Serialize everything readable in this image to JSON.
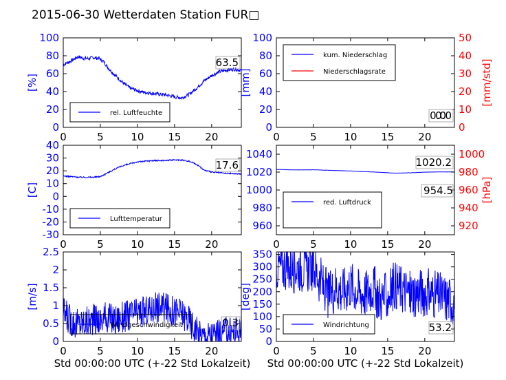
{
  "figure_title": "2015-06-30 Wetterdaten Station FUR□",
  "colors": {
    "axis": "#000000",
    "series_blue": "#0000ff",
    "series_red": "#ff0000",
    "ylabel_blue": "#0000ff",
    "ylabel_red": "#ff0000"
  },
  "chart_data": [
    {
      "id": "humidity",
      "type": "line",
      "title": "",
      "xlabel": "",
      "ylabel": "[%]",
      "xlim": [
        0,
        24
      ],
      "ylim": [
        0,
        100
      ],
      "xticks": [
        0,
        5,
        10,
        15,
        20
      ],
      "yticks": [
        0,
        20,
        40,
        60,
        80,
        100
      ],
      "legend_position": "lower-left",
      "value_label": "63.5",
      "series": [
        {
          "name": "rel. Luftfeuchte",
          "color": "#0000ff",
          "noise": 2,
          "x": [
            0,
            1,
            2,
            2.8,
            3.5,
            4,
            4.8,
            5.5,
            6,
            7,
            8,
            9,
            10,
            11,
            12,
            13,
            14,
            15,
            16,
            17,
            18,
            19,
            20,
            21,
            22,
            23,
            24
          ],
          "y": [
            70,
            74,
            79,
            77,
            77,
            78,
            77,
            73,
            67,
            58,
            50,
            44,
            41,
            39,
            38,
            37,
            36,
            34,
            33,
            37,
            44,
            52,
            58,
            62,
            64,
            65,
            64
          ]
        }
      ]
    },
    {
      "id": "precipitation",
      "type": "line",
      "title": "",
      "xlabel": "",
      "ylabel": "[mm]",
      "ylabel_right": "[mm/std]",
      "xlim": [
        0,
        24
      ],
      "ylim": [
        0,
        100
      ],
      "ylim_right": [
        0,
        50
      ],
      "xticks": [
        0,
        5,
        10,
        15,
        20
      ],
      "yticks": [
        0,
        20,
        40,
        60,
        80,
        100
      ],
      "yticks_right": [
        0,
        10,
        20,
        30,
        40,
        50
      ],
      "legend_position": "upper-left",
      "value_label": "0.0",
      "value_label_2": "0.0",
      "series": [
        {
          "name": "kum. Niederschlag",
          "color": "#0000ff",
          "axis": "left",
          "noise": 0,
          "x": [
            0,
            24
          ],
          "y": [
            0,
            0
          ]
        },
        {
          "name": "Niederschlagsrate",
          "color": "#ff0000",
          "axis": "right",
          "noise": 0,
          "x": [
            0,
            24
          ],
          "y": [
            0,
            0
          ]
        }
      ]
    },
    {
      "id": "temperature",
      "type": "line",
      "title": "",
      "xlabel": "",
      "ylabel": "[C]",
      "xlim": [
        0,
        24
      ],
      "ylim": [
        -30,
        40
      ],
      "xticks": [
        0,
        5,
        10,
        15,
        20
      ],
      "yticks": [
        -30,
        -20,
        -10,
        0,
        10,
        20,
        30,
        40
      ],
      "legend_position": "lower-left",
      "value_label": "17.6",
      "series": [
        {
          "name": "Lufttemperatur",
          "color": "#0000ff",
          "noise": 0.5,
          "x": [
            0,
            1,
            2,
            3,
            4,
            5,
            6,
            7,
            8,
            9,
            10,
            11,
            12,
            13,
            14,
            15,
            16,
            17,
            18,
            19,
            20,
            21,
            22,
            23,
            24
          ],
          "y": [
            16,
            15.5,
            15,
            15,
            15,
            15.5,
            18.5,
            21.5,
            24,
            25.5,
            27,
            27.5,
            28,
            28,
            28.2,
            28.5,
            28.5,
            27.5,
            25,
            20.5,
            19,
            18.5,
            18,
            17.8,
            17.6
          ]
        }
      ]
    },
    {
      "id": "pressure",
      "type": "line",
      "title": "",
      "xlabel": "",
      "ylabel": "",
      "ylabel_right": "[hPa]",
      "xlim": [
        0,
        24
      ],
      "ylim": [
        950,
        1050
      ],
      "ylim_right": [
        910,
        1010
      ],
      "xticks": [
        0,
        5,
        10,
        15,
        20
      ],
      "yticks": [
        960,
        980,
        1000,
        1020,
        1040
      ],
      "yticks_right": [
        920,
        940,
        960,
        980,
        1000
      ],
      "legend_position": "lower-left",
      "value_label": "1020.2",
      "value_label_2": "954.5",
      "series": [
        {
          "name": "red. Luftdruck",
          "color": "#0000ff",
          "axis": "left",
          "noise": 0.15,
          "x": [
            0,
            2,
            4,
            5,
            6,
            8,
            10,
            12,
            14,
            16,
            18,
            20,
            22,
            24
          ],
          "y": [
            1023,
            1022.5,
            1022.5,
            1022.6,
            1022.3,
            1021.8,
            1021.2,
            1020.5,
            1019.8,
            1018.8,
            1019.2,
            1020,
            1020.2,
            1020.2
          ]
        }
      ]
    },
    {
      "id": "windspeed",
      "type": "line",
      "title": "",
      "xlabel": "Std 00:00:00 UTC (+-22 Std Lokalzeit)",
      "ylabel": "[m/s]",
      "xlim": [
        0,
        24
      ],
      "ylim": [
        0,
        2.5
      ],
      "xticks": [
        0,
        5,
        10,
        15,
        20
      ],
      "yticks": [
        0,
        0.5,
        1,
        1.5,
        2,
        2.5
      ],
      "legend_position": "lower-left",
      "value_label": "0.3",
      "series": [
        {
          "name": "Windgeschwindigkeit",
          "color": "#0000ff",
          "noise": 0.45,
          "x": [
            0,
            1,
            2,
            3,
            4,
            5,
            6,
            7,
            8,
            9,
            10,
            11,
            12,
            13,
            14,
            15,
            16,
            17,
            18,
            19,
            20,
            21,
            22,
            23,
            24
          ],
          "y": [
            0.8,
            0.6,
            0.5,
            0.55,
            0.6,
            0.6,
            0.7,
            0.6,
            0.7,
            0.75,
            0.8,
            0.85,
            0.9,
            1.0,
            0.9,
            0.85,
            0.8,
            0.6,
            0.25,
            0.15,
            0.2,
            0.2,
            0.25,
            0.3,
            0.3
          ]
        }
      ]
    },
    {
      "id": "winddirection",
      "type": "line",
      "title": "",
      "xlabel": "Std 00:00:00 UTC (+-22 Std Lokalzeit)",
      "ylabel": "[deg]",
      "xlim": [
        0,
        24
      ],
      "ylim": [
        0,
        360
      ],
      "xticks": [
        0,
        5,
        10,
        15,
        20
      ],
      "yticks": [
        0,
        50,
        100,
        150,
        200,
        250,
        300,
        350
      ],
      "legend_position": "lower-left",
      "value_label": "53.2",
      "series": [
        {
          "name": "Windrichtung",
          "color": "#0000ff",
          "noise": 100,
          "x": [
            0,
            1,
            2,
            3,
            4,
            5,
            6,
            7,
            8,
            9,
            10,
            11,
            12,
            13,
            14,
            15,
            16,
            17,
            18,
            19,
            20,
            21,
            22,
            23,
            24
          ],
          "y": [
            300,
            305,
            290,
            300,
            290,
            300,
            240,
            180,
            220,
            200,
            230,
            200,
            190,
            220,
            170,
            180,
            230,
            210,
            190,
            200,
            200,
            190,
            180,
            170,
            160
          ]
        }
      ]
    }
  ]
}
